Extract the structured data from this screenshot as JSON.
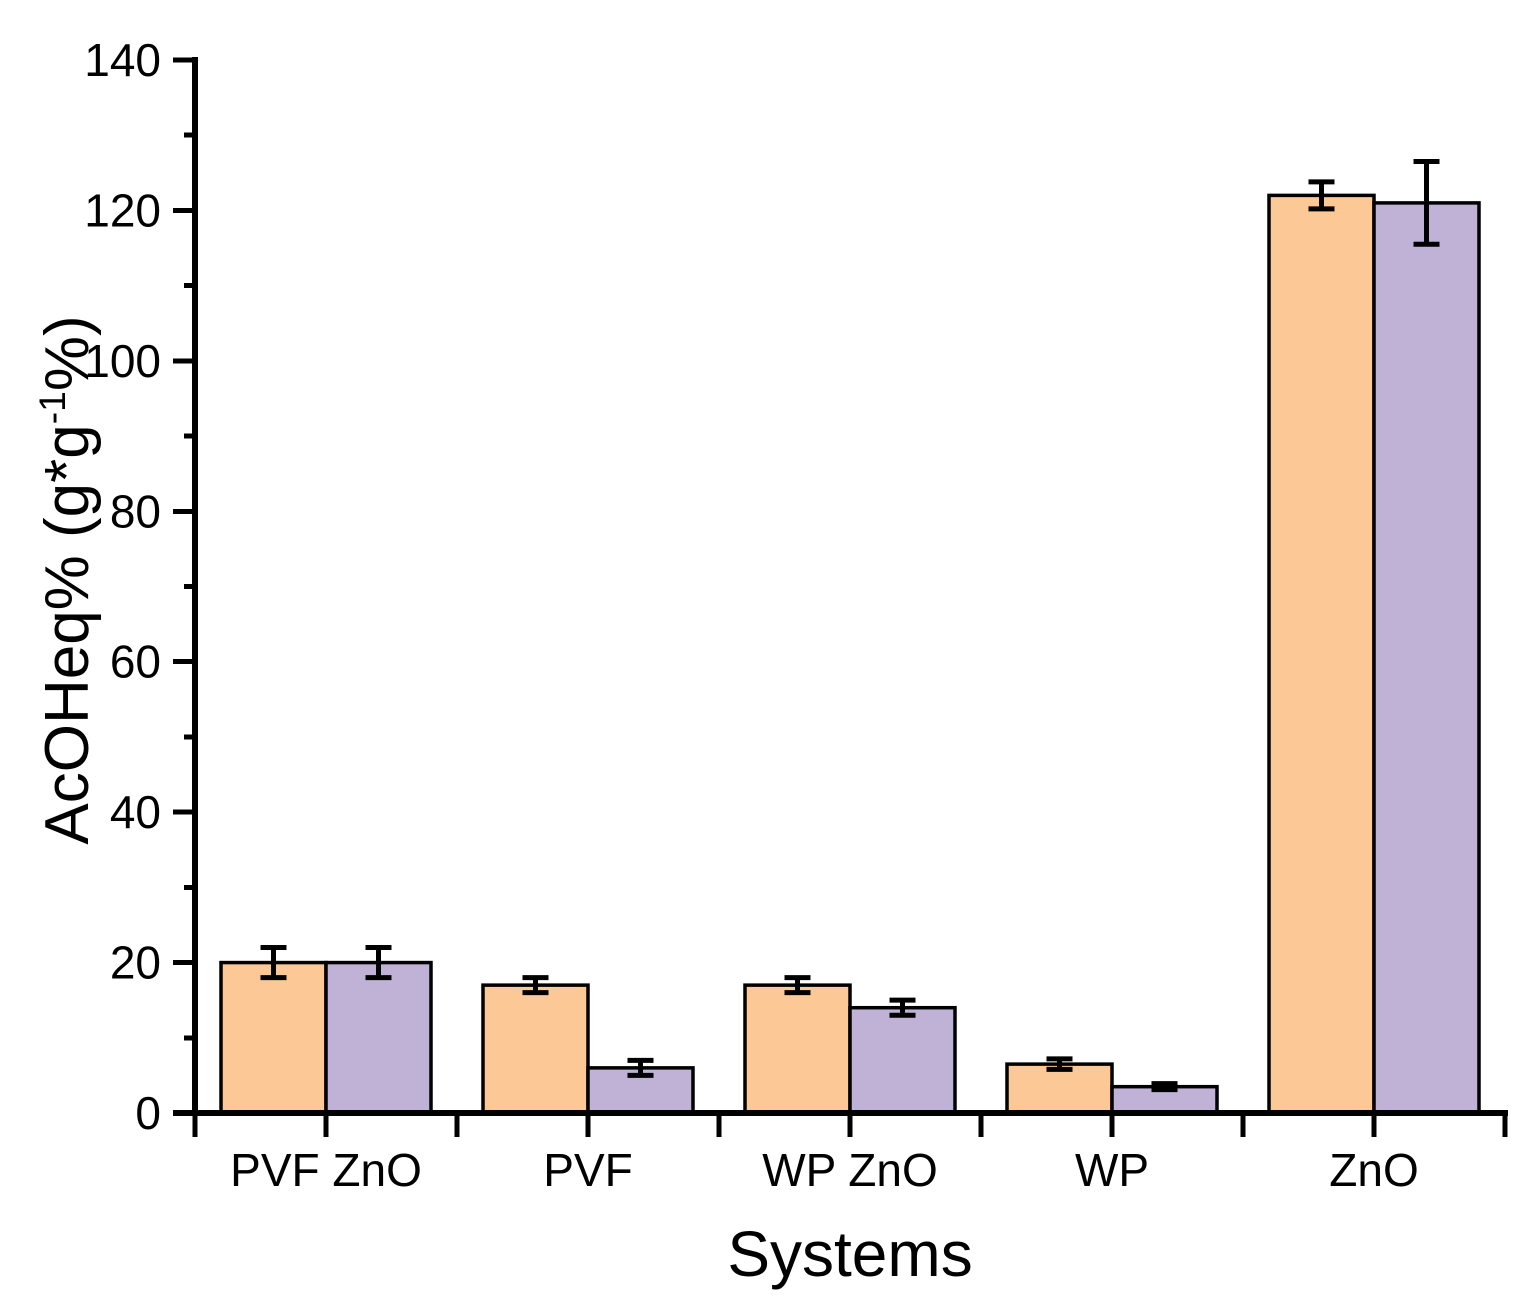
{
  "chart_data": {
    "type": "bar",
    "title": "",
    "xlabel": "Systems",
    "ylabel": "AcOHeq% (g*g⁻¹%)",
    "ylabel_parts": {
      "prefix": "AcOHeq% (g*g",
      "sup": "-1",
      "suffix": "%)"
    },
    "categories": [
      "PVF ZnO",
      "PVF",
      "WP ZnO",
      "WP",
      "ZnO"
    ],
    "series": [
      {
        "name": "orange",
        "color": "#FCC896",
        "values": [
          20,
          17,
          17,
          6.5,
          122
        ],
        "errors": [
          2,
          1,
          1,
          0.7,
          1.8
        ]
      },
      {
        "name": "purple",
        "color": "#C0B2D7",
        "values": [
          20,
          6,
          14,
          3.5,
          121
        ],
        "errors": [
          2,
          1,
          1,
          0.4,
          5.5
        ]
      }
    ],
    "ylim": [
      0,
      140
    ],
    "yticks": [
      0,
      20,
      40,
      60,
      80,
      100,
      120,
      140
    ],
    "ytick_step": 20,
    "yminor_step": 10,
    "grid": false,
    "legend": false,
    "error_bar_color": "#000000",
    "bar_outline_color": "#000000",
    "axis_color": "#000000"
  }
}
